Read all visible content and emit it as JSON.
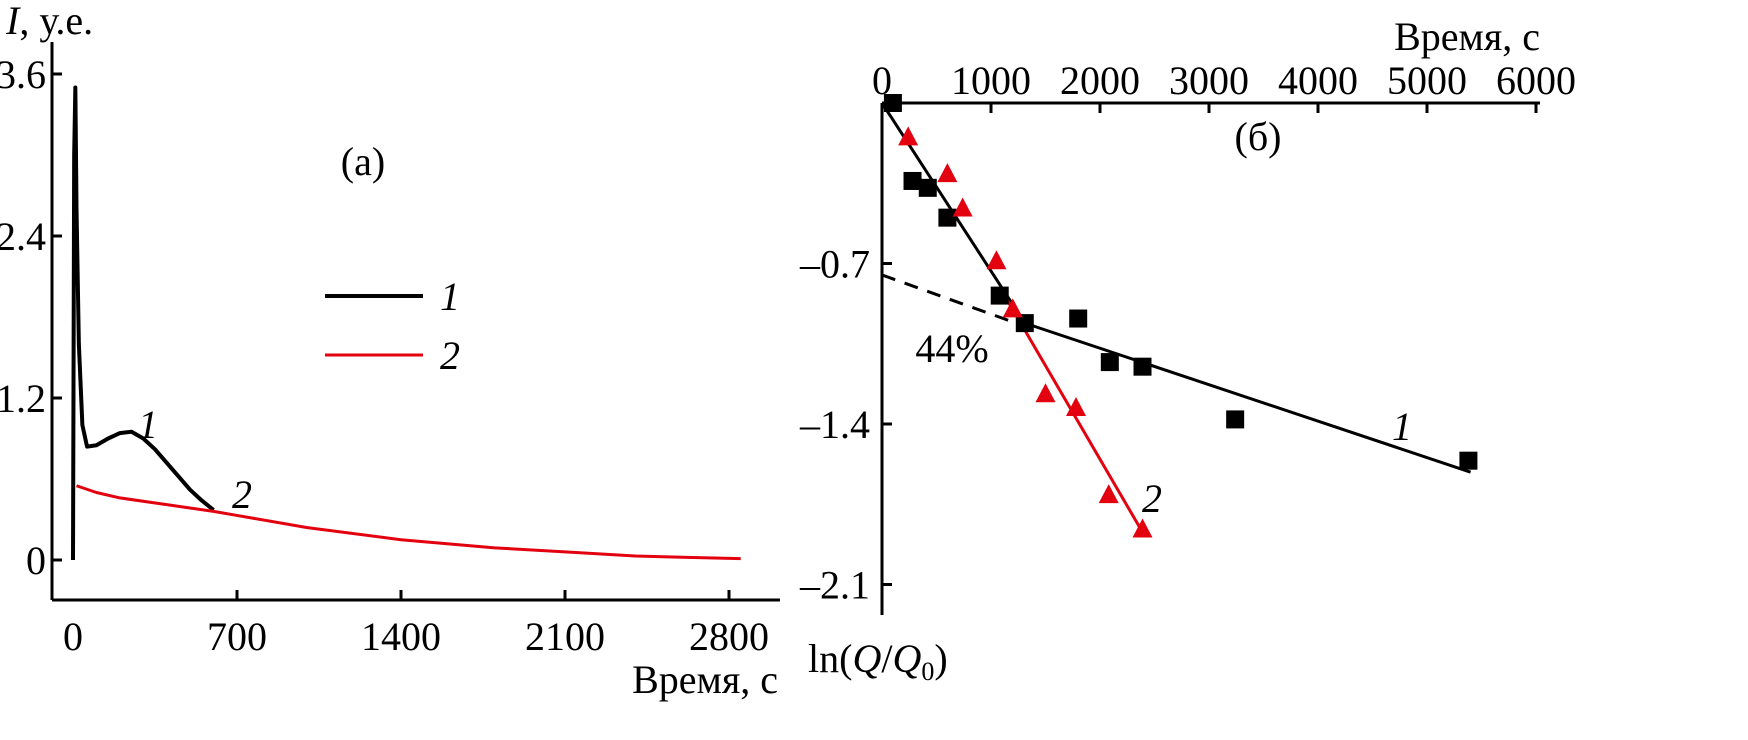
{
  "chart_data": [
    {
      "type": "line",
      "panel_label": "(а)",
      "ylabel_symbol": "I",
      "ylabel_unit": ", у.е.",
      "xlabel": "Время, с",
      "xlim": [
        -80,
        3150
      ],
      "ylim": [
        -0.3,
        3.75
      ],
      "xticks": [
        0,
        700,
        1400,
        2100,
        2800
      ],
      "yticks": [
        0,
        1.2,
        2.4,
        3.6
      ],
      "ytick_labels": [
        "0",
        "1.2",
        "2.4",
        "3.6"
      ],
      "colors": {
        "1": "#000000",
        "2": "#e3000f"
      },
      "legend": {
        "placement": "center",
        "entries": [
          "1",
          "2"
        ]
      },
      "series": [
        {
          "name": "1",
          "x": [
            0,
            5,
            10,
            15,
            25,
            40,
            60,
            100,
            150,
            200,
            250,
            300,
            350,
            400,
            450,
            500,
            550,
            600
          ],
          "y": [
            0,
            3.0,
            3.5,
            2.6,
            1.6,
            1.0,
            0.84,
            0.85,
            0.9,
            0.94,
            0.95,
            0.9,
            0.82,
            0.72,
            0.62,
            0.52,
            0.44,
            0.37
          ]
        },
        {
          "name": "2",
          "x": [
            15,
            100,
            200,
            400,
            600,
            700,
            1000,
            1400,
            1800,
            2100,
            2400,
            2600,
            2850
          ],
          "y": [
            0.55,
            0.5,
            0.46,
            0.41,
            0.36,
            0.33,
            0.24,
            0.15,
            0.09,
            0.06,
            0.03,
            0.02,
            0.01
          ]
        }
      ],
      "curve_labels": [
        "1",
        "2"
      ]
    },
    {
      "type": "scatter",
      "panel_label": "(б)",
      "xlabel": "Время, с",
      "ylabel": "ln(Q/Q0)",
      "ylabel_parts": {
        "pre": "ln(",
        "q": "Q",
        "slash": "/",
        "q0": "Q",
        "sub": "0",
        "post": ")"
      },
      "xlim": [
        0,
        6000
      ],
      "ylim": [
        -2.1,
        0
      ],
      "xticks": [
        0,
        1000,
        2000,
        3000,
        4000,
        5000,
        6000
      ],
      "yticks": [
        -0.7,
        -1.4,
        -2.1
      ],
      "ytick_labels": [
        "–0.7",
        "–1.4",
        "–2.1"
      ],
      "colors": {
        "1": "#000000",
        "2": "#e3000f"
      },
      "annotation": "44%",
      "series": [
        {
          "name": "1",
          "marker": "square",
          "x": [
            100,
            280,
            420,
            600,
            1080,
            1310,
            1800,
            2090,
            2390,
            3240,
            5380
          ],
          "y": [
            0,
            -0.34,
            -0.37,
            -0.5,
            -0.84,
            -0.96,
            -0.94,
            -1.13,
            -1.15,
            -1.38,
            -1.56
          ]
        },
        {
          "name": "2",
          "marker": "triangle",
          "x": [
            240,
            600,
            740,
            1050,
            1200,
            1500,
            1780,
            2080,
            2390
          ],
          "y": [
            -0.15,
            -0.31,
            -0.46,
            -0.69,
            -0.9,
            -1.27,
            -1.33,
            -1.71,
            -1.86
          ]
        }
      ],
      "fit_lines": [
        {
          "series": "1",
          "x": [
            0,
            1310
          ],
          "y": [
            0,
            -0.96
          ]
        },
        {
          "series": "1",
          "x": [
            1310,
            5400
          ],
          "y": [
            -0.96,
            -1.61
          ]
        },
        {
          "series": "2",
          "x": [
            1150,
            2400
          ],
          "y": [
            -0.86,
            -1.88
          ]
        },
        {
          "series": "1",
          "style": "dashed",
          "x": [
            0,
            1230
          ],
          "y": [
            -0.75,
            -0.96
          ]
        }
      ]
    }
  ]
}
